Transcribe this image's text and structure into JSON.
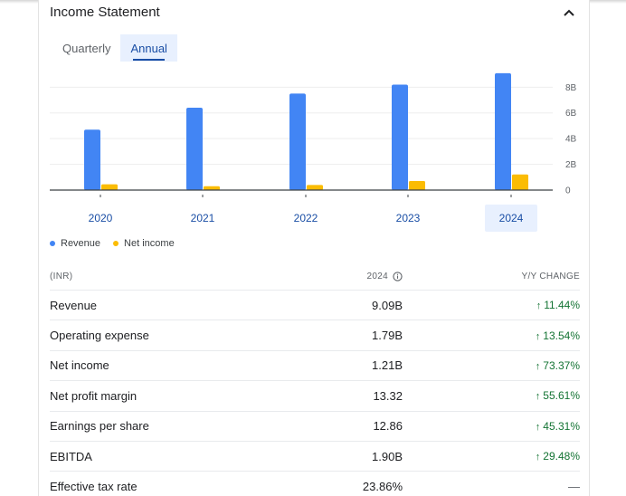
{
  "header": {
    "title": "Income Statement"
  },
  "tabs": [
    {
      "label": "Quarterly",
      "active": false
    },
    {
      "label": "Annual",
      "active": true
    }
  ],
  "colors": {
    "revenue": "#4285f4",
    "net_income": "#fbbc04",
    "accent": "#1a4ea5",
    "positive": "#137333"
  },
  "chart_data": {
    "type": "bar",
    "categories": [
      "2020",
      "2021",
      "2022",
      "2023",
      "2024"
    ],
    "series": [
      {
        "name": "Revenue",
        "values": [
          4.7,
          6.4,
          7.5,
          8.2,
          9.09
        ]
      },
      {
        "name": "Net income",
        "values": [
          0.45,
          0.3,
          0.4,
          0.7,
          1.21
        ]
      }
    ],
    "yticks": [
      "0",
      "2B",
      "4B",
      "6B",
      "8B"
    ],
    "ytick_values": [
      0,
      2,
      4,
      6,
      8
    ],
    "ylim": [
      0,
      9.5
    ],
    "selected_category": "2024",
    "legend_position": "bottom-left"
  },
  "table": {
    "headers": {
      "label": "(INR)",
      "year": "2024",
      "change": "Y/Y CHANGE"
    },
    "rows": [
      {
        "label": "Revenue",
        "value": "9.09B",
        "change": "11.44%",
        "direction": "up"
      },
      {
        "label": "Operating expense",
        "value": "1.79B",
        "change": "13.54%",
        "direction": "up"
      },
      {
        "label": "Net income",
        "value": "1.21B",
        "change": "73.37%",
        "direction": "up"
      },
      {
        "label": "Net profit margin",
        "value": "13.32",
        "change": "55.61%",
        "direction": "up"
      },
      {
        "label": "Earnings per share",
        "value": "12.86",
        "change": "45.31%",
        "direction": "up"
      },
      {
        "label": "EBITDA",
        "value": "1.90B",
        "change": "29.48%",
        "direction": "up"
      },
      {
        "label": "Effective tax rate",
        "value": "23.86%",
        "change": "—",
        "direction": "none"
      }
    ]
  }
}
